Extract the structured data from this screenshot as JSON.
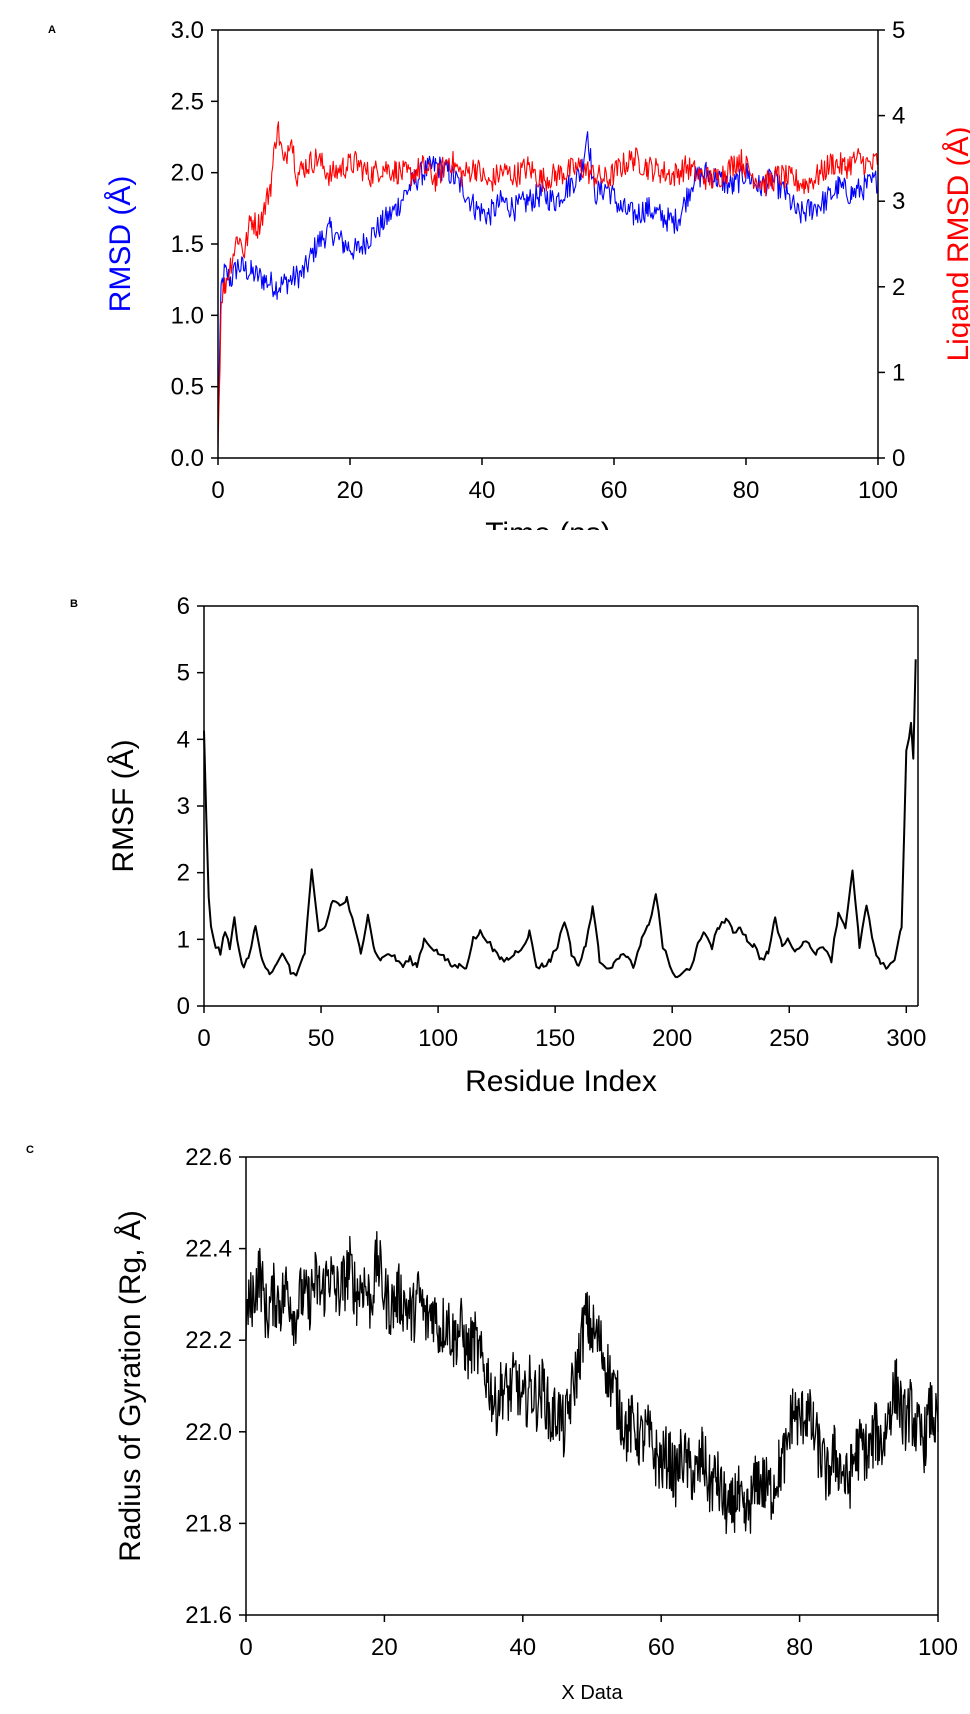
{
  "chart_data": [
    {
      "panel_label": "A",
      "type": "line",
      "xlabel": "Time (ns)",
      "ylabel": "RMSD (Å)",
      "y2label": "Ligand RMSD (Å)",
      "xlim": [
        0,
        100
      ],
      "ylim": [
        0,
        3.0
      ],
      "y2lim": [
        0,
        5
      ],
      "x_ticks": [
        "0",
        "20",
        "40",
        "60",
        "80",
        "100"
      ],
      "y_ticks": [
        "0.0",
        "0.5",
        "1.0",
        "1.5",
        "2.0",
        "2.5",
        "3.0"
      ],
      "y2_ticks": [
        "0",
        "1",
        "2",
        "3",
        "4",
        "5"
      ],
      "grid": false,
      "series": [
        {
          "color": "#0000ff",
          "axis": "left",
          "x": [
            0,
            0.5,
            1,
            2,
            3,
            5,
            7,
            9,
            11,
            13,
            15,
            17,
            19,
            21,
            23,
            25,
            27,
            29,
            31,
            33,
            35,
            37,
            39,
            41,
            43,
            45,
            47,
            49,
            51,
            53,
            55,
            56,
            57,
            59,
            61,
            63,
            65,
            67,
            69,
            70,
            72,
            74,
            76,
            78,
            80,
            82,
            84,
            86,
            88,
            90,
            92,
            94,
            96,
            98,
            100
          ],
          "values": [
            0.3,
            1.2,
            1.3,
            1.25,
            1.35,
            1.3,
            1.25,
            1.2,
            1.25,
            1.3,
            1.5,
            1.6,
            1.5,
            1.45,
            1.55,
            1.65,
            1.75,
            1.9,
            2.0,
            2.05,
            2.0,
            1.9,
            1.75,
            1.7,
            1.8,
            1.75,
            1.8,
            1.85,
            1.8,
            1.9,
            2.0,
            2.3,
            1.85,
            1.9,
            1.75,
            1.7,
            1.75,
            1.7,
            1.65,
            1.7,
            1.95,
            2.0,
            1.95,
            1.9,
            2.0,
            1.9,
            1.95,
            1.85,
            1.7,
            1.75,
            1.8,
            1.9,
            1.85,
            1.9,
            1.95
          ]
        },
        {
          "color": "#ff0000",
          "axis": "right",
          "x": [
            0,
            0.5,
            1,
            2,
            3,
            4,
            5,
            6,
            7,
            8,
            9,
            10,
            11,
            12,
            13,
            15,
            17,
            19,
            21,
            23,
            25,
            27,
            29,
            31,
            33,
            35,
            37,
            39,
            41,
            43,
            45,
            47,
            49,
            51,
            53,
            55,
            57,
            59,
            61,
            63,
            65,
            67,
            69,
            71,
            73,
            75,
            77,
            79,
            81,
            83,
            85,
            87,
            89,
            91,
            93,
            95,
            97,
            99,
            100
          ],
          "values": [
            0.1,
            1.9,
            2.0,
            2.3,
            2.6,
            2.4,
            2.8,
            2.7,
            2.9,
            3.2,
            3.9,
            3.4,
            3.8,
            3.3,
            3.4,
            3.5,
            3.3,
            3.4,
            3.45,
            3.3,
            3.4,
            3.35,
            3.3,
            3.4,
            3.25,
            3.5,
            3.3,
            3.4,
            3.2,
            3.35,
            3.3,
            3.4,
            3.25,
            3.3,
            3.35,
            3.4,
            3.3,
            3.25,
            3.4,
            3.5,
            3.4,
            3.35,
            3.3,
            3.4,
            3.3,
            3.25,
            3.35,
            3.5,
            3.3,
            3.2,
            3.3,
            3.25,
            3.2,
            3.3,
            3.45,
            3.4,
            3.5,
            3.4,
            3.5
          ]
        }
      ]
    },
    {
      "panel_label": "B",
      "type": "line",
      "xlabel": "Residue Index",
      "ylabel": "RMSF (Å)",
      "xlim": [
        0,
        305
      ],
      "ylim": [
        0,
        6
      ],
      "x_ticks": [
        "0",
        "50",
        "100",
        "150",
        "200",
        "250",
        "300"
      ],
      "y_ticks": [
        "0",
        "1",
        "2",
        "3",
        "4",
        "5",
        "6"
      ],
      "grid": false,
      "series": [
        {
          "color": "#000000",
          "x": [
            0,
            1,
            2,
            3,
            5,
            7,
            9,
            11,
            13,
            15,
            17,
            19,
            22,
            25,
            28,
            31,
            34,
            37,
            40,
            43,
            46,
            49,
            52,
            55,
            58,
            61,
            64,
            67,
            70,
            73,
            76,
            79,
            82,
            85,
            88,
            91,
            94,
            97,
            100,
            103,
            106,
            109,
            112,
            115,
            118,
            121,
            124,
            127,
            130,
            133,
            136,
            139,
            142,
            145,
            148,
            151,
            154,
            157,
            160,
            163,
            166,
            169,
            172,
            175,
            178,
            181,
            184,
            187,
            190,
            193,
            196,
            199,
            202,
            205,
            208,
            211,
            214,
            217,
            220,
            223,
            226,
            229,
            232,
            235,
            238,
            241,
            244,
            247,
            250,
            253,
            256,
            259,
            262,
            265,
            268,
            271,
            274,
            277,
            280,
            283,
            286,
            289,
            292,
            295,
            298,
            300,
            302,
            303,
            304
          ],
          "values": [
            4.1,
            2.8,
            1.6,
            1.2,
            0.9,
            0.8,
            1.1,
            0.9,
            1.3,
            0.8,
            0.6,
            0.7,
            1.2,
            0.7,
            0.5,
            0.6,
            0.8,
            0.5,
            0.5,
            0.8,
            2.0,
            1.1,
            1.2,
            1.6,
            1.5,
            1.6,
            1.2,
            0.8,
            1.4,
            0.8,
            0.7,
            0.8,
            0.7,
            0.6,
            0.7,
            0.6,
            1.0,
            0.9,
            0.8,
            0.7,
            0.6,
            0.6,
            0.6,
            1.0,
            1.1,
            1.0,
            0.8,
            0.7,
            0.7,
            0.8,
            0.9,
            1.1,
            0.6,
            0.6,
            0.7,
            0.9,
            1.3,
            0.8,
            0.6,
            0.9,
            1.5,
            0.7,
            0.6,
            0.6,
            0.8,
            0.7,
            0.6,
            1.0,
            1.2,
            1.7,
            0.9,
            0.6,
            0.4,
            0.5,
            0.6,
            0.9,
            1.1,
            0.9,
            1.2,
            1.3,
            1.1,
            1.2,
            1.0,
            0.9,
            0.7,
            0.8,
            1.3,
            0.9,
            1.0,
            0.8,
            1.0,
            0.9,
            0.8,
            0.9,
            0.7,
            1.4,
            1.2,
            2.0,
            0.9,
            1.5,
            0.9,
            0.6,
            0.6,
            0.7,
            1.2,
            3.8,
            4.2,
            3.7,
            5.2
          ]
        }
      ]
    },
    {
      "panel_label": "C",
      "type": "line",
      "xlabel": "X Data",
      "ylabel": "Radius of Gyration (Rg, Å)",
      "xlim": [
        0,
        100
      ],
      "ylim": [
        21.6,
        22.6
      ],
      "x_ticks": [
        "0",
        "20",
        "40",
        "60",
        "80",
        "100"
      ],
      "y_ticks": [
        "21.6",
        "21.8",
        "22.0",
        "22.2",
        "22.4",
        "22.6"
      ],
      "grid": false,
      "series": [
        {
          "color": "#000000",
          "x": [
            0,
            1,
            2,
            3,
            4,
            5,
            6,
            7,
            8,
            9,
            10,
            11,
            12,
            13,
            14,
            15,
            16,
            17,
            18,
            19,
            20,
            21,
            22,
            23,
            24,
            25,
            26,
            27,
            28,
            29,
            30,
            31,
            32,
            33,
            34,
            35,
            36,
            37,
            38,
            39,
            40,
            41,
            42,
            43,
            44,
            45,
            46,
            47,
            48,
            49,
            50,
            51,
            52,
            53,
            54,
            55,
            56,
            57,
            58,
            59,
            60,
            61,
            62,
            63,
            64,
            65,
            66,
            67,
            68,
            69,
            70,
            71,
            72,
            73,
            74,
            75,
            76,
            77,
            78,
            79,
            80,
            81,
            82,
            83,
            84,
            85,
            86,
            87,
            88,
            89,
            90,
            91,
            92,
            93,
            94,
            95,
            96,
            97,
            98,
            99,
            100
          ],
          "values": [
            22.25,
            22.3,
            22.35,
            22.25,
            22.3,
            22.28,
            22.32,
            22.25,
            22.3,
            22.28,
            22.33,
            22.3,
            22.35,
            22.3,
            22.32,
            22.36,
            22.3,
            22.33,
            22.28,
            22.38,
            22.3,
            22.27,
            22.3,
            22.28,
            22.25,
            22.3,
            22.24,
            22.27,
            22.22,
            22.25,
            22.2,
            22.23,
            22.17,
            22.2,
            22.15,
            22.12,
            22.05,
            22.1,
            22.08,
            22.12,
            22.05,
            22.1,
            22.07,
            22.1,
            22.02,
            22.05,
            22.0,
            22.08,
            22.15,
            22.25,
            22.22,
            22.2,
            22.15,
            22.1,
            22.05,
            22.0,
            22.02,
            21.98,
            22.0,
            21.95,
            21.93,
            21.95,
            21.9,
            21.95,
            21.92,
            21.9,
            21.95,
            21.88,
            21.9,
            21.85,
            21.82,
            21.87,
            21.8,
            21.85,
            21.9,
            21.88,
            21.87,
            21.92,
            21.95,
            22.05,
            22.02,
            22.05,
            22.0,
            21.95,
            21.9,
            21.95,
            21.92,
            21.88,
            21.95,
            21.97,
            21.95,
            22.0,
            21.97,
            22.05,
            22.1,
            22.02,
            22.05,
            22.0,
            21.98,
            22.05,
            22.0
          ]
        }
      ]
    }
  ]
}
